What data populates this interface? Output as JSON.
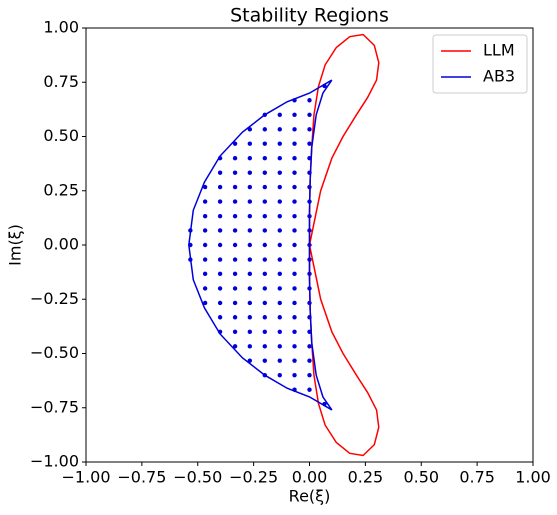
{
  "chart_data": {
    "type": "line",
    "title": "Stability Regions",
    "xlabel": "Re(ξ)",
    "ylabel": "Im(ξ)",
    "xlim": [
      -1,
      1
    ],
    "ylim": [
      -1,
      1
    ],
    "xticks": [
      {
        "value": -1,
        "label": "−1.00"
      },
      {
        "value": -0.75,
        "label": "−0.75"
      },
      {
        "value": -0.5,
        "label": "−0.50"
      },
      {
        "value": -0.25,
        "label": "−0.25"
      },
      {
        "value": 0,
        "label": "0.00"
      },
      {
        "value": 0.25,
        "label": "0.25"
      },
      {
        "value": 0.5,
        "label": "0.50"
      },
      {
        "value": 0.75,
        "label": "0.75"
      },
      {
        "value": 1,
        "label": "1.00"
      }
    ],
    "yticks": [
      {
        "value": -1,
        "label": "−1.00"
      },
      {
        "value": -0.75,
        "label": "−0.75"
      },
      {
        "value": -0.5,
        "label": "−0.50"
      },
      {
        "value": -0.25,
        "label": "−0.25"
      },
      {
        "value": 0,
        "label": "0.00"
      },
      {
        "value": 0.25,
        "label": "0.25"
      },
      {
        "value": 0.5,
        "label": "0.50"
      },
      {
        "value": 0.75,
        "label": "0.75"
      },
      {
        "value": 1,
        "label": "1.00"
      }
    ],
    "legend": "upper right",
    "series": [
      {
        "name": "LLM",
        "color": "#ff0000",
        "x": [
          0,
          0.02,
          0.05,
          0.1,
          0.15,
          0.21,
          0.26,
          0.3,
          0.31,
          0.29,
          0.24,
          0.18,
          0.12,
          0.07,
          0.04,
          0.02,
          0.01,
          0.003,
          0,
          0,
          0,
          0.003,
          0.01,
          0.02,
          0.04,
          0.07,
          0.12,
          0.18,
          0.24,
          0.29,
          0.31,
          0.3,
          0.26,
          0.21,
          0.15,
          0.1,
          0.05,
          0.02,
          0
        ],
        "values": [
          0,
          0.1,
          0.25,
          0.4,
          0.5,
          0.6,
          0.68,
          0.76,
          0.84,
          0.92,
          0.97,
          0.96,
          0.91,
          0.83,
          0.73,
          0.6,
          0.45,
          0.3,
          0.15,
          0,
          -0.15,
          -0.3,
          -0.45,
          -0.6,
          -0.73,
          -0.83,
          -0.91,
          -0.96,
          -0.97,
          -0.92,
          -0.84,
          -0.76,
          -0.68,
          -0.6,
          -0.5,
          -0.4,
          -0.25,
          -0.1,
          0
        ]
      },
      {
        "name": "AB3",
        "color": "#0000dd",
        "x": [
          0.1,
          0.0,
          -0.1,
          -0.2,
          -0.3,
          -0.4,
          -0.47,
          -0.52,
          -0.54,
          -0.52,
          -0.47,
          -0.4,
          -0.3,
          -0.2,
          -0.1,
          0.0,
          0.1,
          0.06,
          0.03,
          0.01,
          0.003,
          0,
          0,
          0,
          0.003,
          0.01,
          0.03,
          0.06,
          0.1
        ],
        "values": [
          0.76,
          0.7,
          0.66,
          0.6,
          0.52,
          0.41,
          0.29,
          0.16,
          0,
          -0.16,
          -0.29,
          -0.41,
          -0.52,
          -0.6,
          -0.66,
          -0.7,
          -0.76,
          -0.7,
          -0.6,
          -0.45,
          -0.3,
          -0.15,
          0,
          0.15,
          0.3,
          0.45,
          0.6,
          0.7,
          0.76
        ]
      }
    ],
    "points": {
      "color": "#0000dd",
      "x": [
        -0.533,
        -0.533,
        -0.533,
        -0.467,
        -0.467,
        -0.467,
        -0.467,
        -0.467,
        -0.467,
        -0.467,
        -0.467,
        -0.467,
        -0.4,
        -0.4,
        -0.4,
        -0.4,
        -0.4,
        -0.4,
        -0.4,
        -0.4,
        -0.4,
        -0.4,
        -0.4,
        -0.4,
        -0.4,
        -0.333,
        -0.333,
        -0.333,
        -0.333,
        -0.333,
        -0.333,
        -0.333,
        -0.333,
        -0.333,
        -0.333,
        -0.333,
        -0.333,
        -0.333,
        -0.333,
        -0.333,
        -0.267,
        -0.267,
        -0.267,
        -0.267,
        -0.267,
        -0.267,
        -0.267,
        -0.267,
        -0.267,
        -0.267,
        -0.267,
        -0.267,
        -0.267,
        -0.267,
        -0.267,
        -0.267,
        -0.267,
        -0.2,
        -0.2,
        -0.2,
        -0.2,
        -0.2,
        -0.2,
        -0.2,
        -0.2,
        -0.2,
        -0.2,
        -0.2,
        -0.2,
        -0.2,
        -0.2,
        -0.2,
        -0.2,
        -0.2,
        -0.2,
        -0.2,
        -0.133,
        -0.133,
        -0.133,
        -0.133,
        -0.133,
        -0.133,
        -0.133,
        -0.133,
        -0.133,
        -0.133,
        -0.133,
        -0.133,
        -0.133,
        -0.133,
        -0.133,
        -0.133,
        -0.133,
        -0.133,
        -0.133,
        -0.067,
        -0.067,
        -0.067,
        -0.067,
        -0.067,
        -0.067,
        -0.067,
        -0.067,
        -0.067,
        -0.067,
        -0.067,
        -0.067,
        -0.067,
        -0.067,
        -0.067,
        -0.067,
        -0.067,
        -0.067,
        -0.067,
        -0.067,
        -0.067,
        0,
        0,
        0,
        0,
        0,
        0,
        0,
        0,
        0,
        0,
        0,
        0,
        0,
        0,
        0,
        0,
        0,
        0,
        0,
        0,
        0,
        0.067,
        0.067
      ],
      "y": [
        0.067,
        0,
        -0.067,
        0.267,
        0.2,
        0.133,
        0.067,
        0,
        -0.067,
        -0.133,
        -0.2,
        -0.267,
        0.4,
        0.333,
        0.267,
        0.2,
        0.133,
        0.067,
        0,
        -0.067,
        -0.133,
        -0.2,
        -0.267,
        -0.333,
        -0.4,
        0.467,
        0.4,
        0.333,
        0.267,
        0.2,
        0.133,
        0.067,
        0,
        -0.067,
        -0.133,
        -0.2,
        -0.267,
        -0.333,
        -0.4,
        -0.467,
        0.533,
        0.467,
        0.4,
        0.333,
        0.267,
        0.2,
        0.133,
        0.067,
        0,
        -0.067,
        -0.133,
        -0.2,
        -0.267,
        -0.333,
        -0.4,
        -0.467,
        -0.533,
        0.6,
        0.533,
        0.467,
        0.4,
        0.333,
        0.267,
        0.2,
        0.133,
        0.067,
        0,
        -0.067,
        -0.133,
        -0.2,
        -0.267,
        -0.333,
        -0.4,
        -0.467,
        -0.533,
        -0.6,
        0.6,
        0.533,
        0.467,
        0.4,
        0.333,
        0.267,
        0.2,
        0.133,
        0.067,
        0,
        -0.067,
        -0.133,
        -0.2,
        -0.267,
        -0.333,
        -0.4,
        -0.467,
        -0.533,
        -0.6,
        0.667,
        0.6,
        0.533,
        0.467,
        0.4,
        0.333,
        0.267,
        0.2,
        0.133,
        0.067,
        0,
        -0.067,
        -0.133,
        -0.2,
        -0.267,
        -0.333,
        -0.4,
        -0.467,
        -0.533,
        -0.6,
        -0.667,
        0.667,
        0.6,
        0.533,
        0.467,
        0.4,
        0.333,
        0.267,
        0.2,
        0.133,
        0.067,
        0,
        -0.067,
        -0.133,
        -0.2,
        -0.267,
        -0.333,
        -0.4,
        -0.467,
        -0.533,
        -0.6,
        -0.667,
        0.733,
        -0.733
      ]
    }
  }
}
